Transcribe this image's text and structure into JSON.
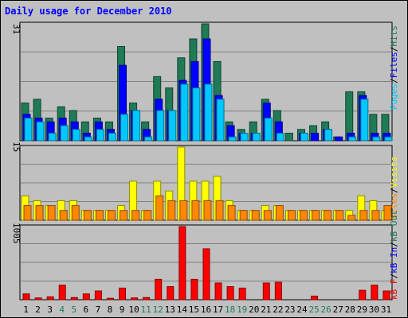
{
  "title": "Daily usage for December 2010",
  "panels": {
    "top": {
      "ymax_label": "31",
      "legend": [
        "Pages",
        "Files",
        "Hits"
      ]
    },
    "middle": {
      "ymax_label": "15",
      "legend": [
        "Sites",
        "Visits"
      ]
    },
    "bottom": {
      "ymax_label": "1005",
      "legend": [
        "kB F",
        "kB In",
        "kB Out"
      ]
    }
  },
  "colors": {
    "hits": "#1f7a55",
    "files": "#0000ff",
    "pages": "#00c8ff",
    "visits": "#ffff00",
    "sites": "#ff8800",
    "kb": "#ff0000",
    "weekend": "#1f7a55",
    "weekday": "#000000"
  },
  "chart_data": [
    {
      "type": "bar",
      "title": "Daily usage for December 2010",
      "categories": [
        "1",
        "2",
        "3",
        "4",
        "5",
        "6",
        "7",
        "8",
        "9",
        "10",
        "11",
        "12",
        "13",
        "14",
        "15",
        "16",
        "17",
        "18",
        "19",
        "20",
        "21",
        "22",
        "23",
        "24",
        "25",
        "26",
        "27",
        "28",
        "29",
        "30",
        "31"
      ],
      "weekend_days": [
        "4",
        "5",
        "11",
        "12",
        "18",
        "19",
        "25",
        "26"
      ],
      "ylim": [
        0,
        31
      ],
      "series": [
        {
          "name": "Hits",
          "values": [
            10,
            11,
            6,
            9,
            8,
            5,
            6,
            5,
            25,
            10,
            5,
            17,
            14,
            22,
            27,
            31,
            21,
            5,
            3,
            5,
            11,
            8,
            2,
            3,
            4,
            5,
            1,
            13,
            13,
            7,
            7
          ]
        },
        {
          "name": "Files",
          "values": [
            7,
            6,
            5,
            6,
            5,
            2,
            5,
            3,
            20,
            8,
            3,
            11,
            8,
            16,
            21,
            27,
            12,
            4,
            2,
            2,
            10,
            5,
            0,
            2,
            2,
            3,
            1,
            2,
            12,
            2,
            2
          ]
        },
        {
          "name": "Pages",
          "values": [
            6,
            5,
            2,
            4,
            3,
            1,
            3,
            2,
            7,
            8,
            1,
            8,
            8,
            15,
            14,
            15,
            11,
            1,
            2,
            2,
            6,
            2,
            0,
            2,
            0,
            3,
            0,
            1,
            11,
            1,
            1
          ]
        }
      ]
    },
    {
      "type": "bar",
      "categories": [
        "1",
        "2",
        "3",
        "4",
        "5",
        "6",
        "7",
        "8",
        "9",
        "10",
        "11",
        "12",
        "13",
        "14",
        "15",
        "16",
        "17",
        "18",
        "19",
        "20",
        "21",
        "22",
        "23",
        "24",
        "25",
        "26",
        "27",
        "28",
        "29",
        "30",
        "31"
      ],
      "ylim": [
        0,
        15
      ],
      "series": [
        {
          "name": "Visits",
          "values": [
            5,
            4,
            3,
            4,
            4,
            2,
            2,
            2,
            3,
            8,
            2,
            8,
            6,
            15,
            8,
            8,
            9,
            4,
            2,
            2,
            3,
            3,
            2,
            2,
            2,
            2,
            2,
            2,
            5,
            4,
            2
          ]
        },
        {
          "name": "Sites",
          "values": [
            3,
            3,
            3,
            2,
            3,
            2,
            2,
            2,
            2,
            2,
            2,
            5,
            4,
            4,
            4,
            4,
            4,
            3,
            2,
            2,
            2,
            3,
            2,
            2,
            2,
            2,
            2,
            1,
            2,
            2,
            3
          ]
        }
      ]
    },
    {
      "type": "bar",
      "categories": [
        "1",
        "2",
        "3",
        "4",
        "5",
        "6",
        "7",
        "8",
        "9",
        "10",
        "11",
        "12",
        "13",
        "14",
        "15",
        "16",
        "17",
        "18",
        "19",
        "20",
        "21",
        "22",
        "23",
        "24",
        "25",
        "26",
        "27",
        "28",
        "29",
        "30",
        "31"
      ],
      "ylim": [
        0,
        1005
      ],
      "series": [
        {
          "name": "kB F",
          "values": [
            80,
            25,
            40,
            200,
            30,
            80,
            120,
            20,
            160,
            25,
            30,
            280,
            180,
            1005,
            280,
            700,
            230,
            180,
            160,
            0,
            230,
            240,
            0,
            0,
            50,
            0,
            0,
            0,
            130,
            200,
            120
          ]
        }
      ]
    }
  ]
}
